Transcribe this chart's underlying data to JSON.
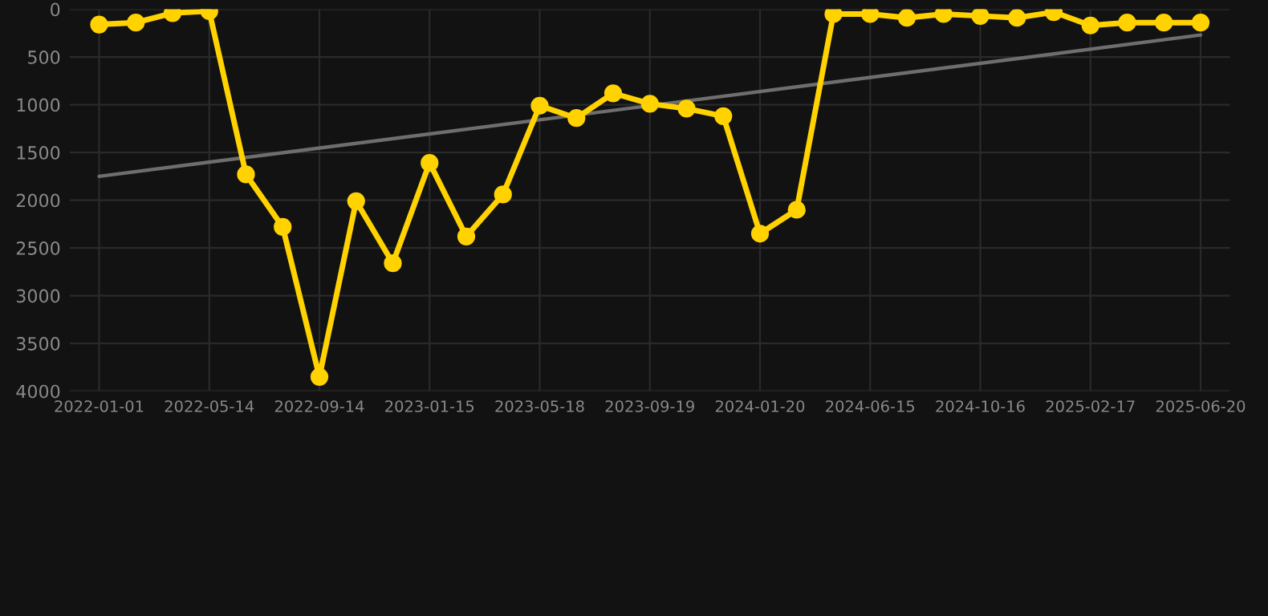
{
  "chart_data": {
    "type": "line",
    "categories": [
      "2022-01-01",
      null,
      null,
      "2022-05-14",
      null,
      null,
      "2022-09-14",
      null,
      null,
      "2023-01-15",
      null,
      null,
      "2023-05-18",
      null,
      null,
      "2023-09-19",
      null,
      null,
      "2024-01-20",
      null,
      null,
      "2024-06-15",
      null,
      null,
      "2024-10-16",
      null,
      null,
      "2025-02-17",
      null,
      null,
      "2025-06-20"
    ],
    "series": [
      {
        "color": "#ffd200",
        "marker": "circle",
        "values": [
          160,
          140,
          40,
          20,
          1730,
          2280,
          3850,
          2010,
          2660,
          1610,
          2380,
          1940,
          1010,
          1140,
          880,
          990,
          1040,
          1120,
          2350,
          2100,
          50,
          50,
          90,
          50,
          70,
          90,
          30,
          170,
          140,
          140,
          140
        ]
      },
      {
        "color": "#6e6e6e",
        "marker": "none",
        "values": [
          1750,
          null,
          null,
          null,
          null,
          null,
          null,
          null,
          null,
          null,
          null,
          null,
          null,
          null,
          null,
          null,
          null,
          null,
          null,
          null,
          null,
          null,
          null,
          null,
          null,
          null,
          null,
          null,
          null,
          null,
          270
        ]
      }
    ],
    "ylim": [
      4000,
      0
    ],
    "yticks": [
      0,
      500,
      1000,
      1500,
      2000,
      2500,
      3000,
      3500,
      4000
    ],
    "grid": true,
    "legend": false
  }
}
